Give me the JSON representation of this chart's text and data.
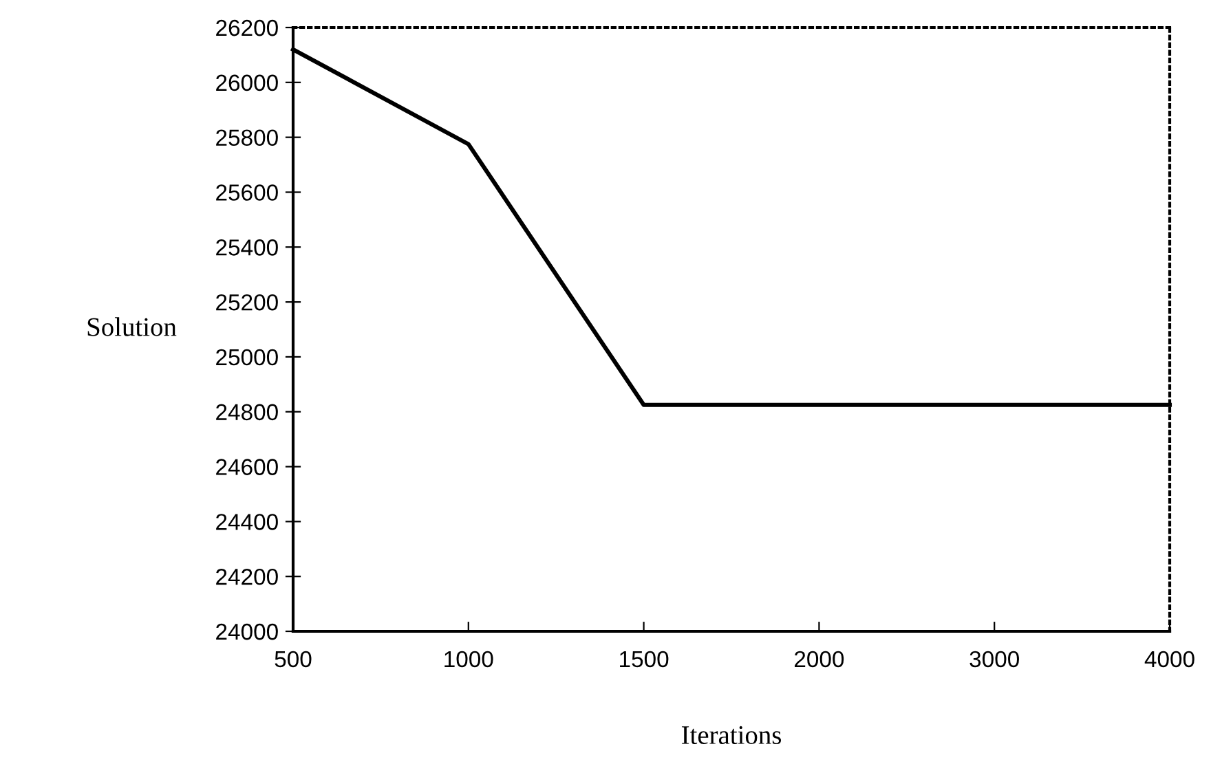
{
  "chart_data": {
    "type": "line",
    "xlabel": "Iterations",
    "ylabel": "Solution",
    "categories": [
      "500",
      "1000",
      "1500",
      "2000",
      "3000",
      "4000"
    ],
    "series": [
      {
        "color": "#000000",
        "values": [
          26120,
          25775,
          24825,
          24825,
          24825,
          24825
        ]
      }
    ],
    "ylim": [
      24000,
      26200
    ],
    "yticks": [
      24000,
      24200,
      24400,
      24600,
      24800,
      25000,
      25200,
      25400,
      25600,
      25800,
      26000,
      26200
    ],
    "grid": false,
    "marker": "none",
    "line_style": "solid"
  }
}
